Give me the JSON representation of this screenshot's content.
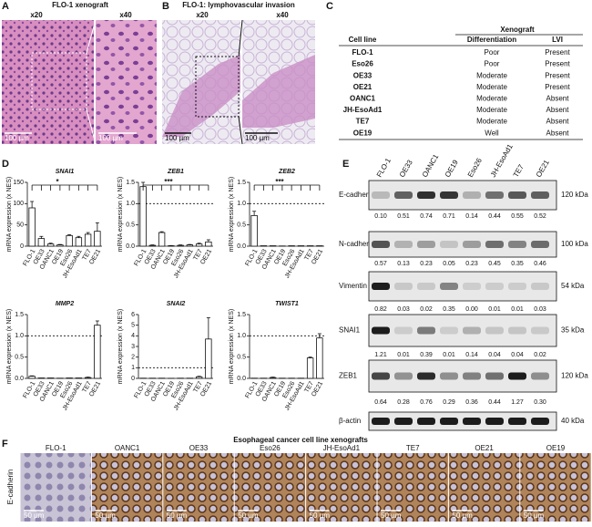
{
  "panels": {
    "a": {
      "label": "A",
      "title": "FLO-1 xenograft",
      "magnifications": [
        "x20",
        "x40"
      ],
      "scale_bars": [
        "100 µm",
        "100 µm"
      ]
    },
    "b": {
      "label": "B",
      "title": "FLO-1: lymphovascular invasion",
      "magnifications": [
        "x20",
        "x40"
      ],
      "scale_bars": [
        "100 µm",
        "100 µm"
      ]
    },
    "c": {
      "label": "C",
      "table": {
        "group_header": "Xenograft",
        "columns": [
          "Cell line",
          "Differentiation",
          "LVI"
        ],
        "rows": [
          [
            "FLO-1",
            "Poor",
            "Present"
          ],
          [
            "Eso26",
            "Poor",
            "Present"
          ],
          [
            "OE33",
            "Moderate",
            "Present"
          ],
          [
            "OE21",
            "Moderate",
            "Present"
          ],
          [
            "OANC1",
            "Moderate",
            "Absent"
          ],
          [
            "JH-EsoAd1",
            "Moderate",
            "Absent"
          ],
          [
            "TE7",
            "Moderate",
            "Absent"
          ],
          [
            "OE19",
            "Well",
            "Absent"
          ]
        ]
      }
    },
    "d": {
      "label": "D"
    },
    "e": {
      "label": "E",
      "lanes": [
        "FLO-1",
        "OE33",
        "OANC1",
        "OE19",
        "Eso26",
        "JH-EsoAd1",
        "TE7",
        "OE21"
      ],
      "rows": [
        {
          "protein": "E-cadherin",
          "size": "120 kDa",
          "values": [
            "0.10",
            "0.51",
            "0.74",
            "0.71",
            "0.14",
            "0.44",
            "0.55",
            "0.52"
          ]
        },
        {
          "protein": "N-cadherin",
          "size": "100 kDa",
          "values": [
            "0.57",
            "0.13",
            "0.23",
            "0.05",
            "0.23",
            "0.45",
            "0.35",
            "0.46"
          ]
        },
        {
          "protein": "Vimentin",
          "size": "54 kDa",
          "values": [
            "0.82",
            "0.03",
            "0.02",
            "0.35",
            "0.00",
            "0.01",
            "0.01",
            "0.03"
          ]
        },
        {
          "protein": "SNAI1",
          "size": "35 kDa",
          "values": [
            "1.21",
            "0.01",
            "0.39",
            "0.01",
            "0.14",
            "0.04",
            "0.04",
            "0.02"
          ]
        },
        {
          "protein": "ZEB1",
          "size": "120 kDa",
          "values": [
            "0.64",
            "0.28",
            "0.76",
            "0.29",
            "0.36",
            "0.44",
            "1.27",
            "0.30"
          ]
        },
        {
          "protein": "β-actin",
          "size": "40 kDa"
        }
      ]
    },
    "f": {
      "label": "F",
      "title": "Esophageal cancer cell line xenografts",
      "stain": "E-cadherin",
      "cell_lines": [
        "FLO-1",
        "OANC1",
        "OE33",
        "Eso26",
        "JH-EsoAd1",
        "TE7",
        "OE21",
        "OE19"
      ],
      "scale_bars": [
        "50 µm",
        "50 µm",
        "50 µm",
        "50 µm",
        "50 µm",
        "50 µm",
        "50 µm",
        "50 µm"
      ]
    }
  },
  "chart_data": [
    {
      "type": "bar",
      "title": "SNAI1",
      "y_label": "mRNA expression (x NES)",
      "categories": [
        "FLO-1",
        "OE33",
        "OANC1",
        "OE19",
        "Eso26",
        "JH-EsoAd1",
        "TE7",
        "OE21"
      ],
      "values": [
        90,
        18,
        5,
        3,
        25,
        20,
        28,
        35
      ],
      "errors": [
        15,
        5,
        2,
        1,
        2,
        3,
        4,
        20
      ],
      "ylim": [
        0,
        150
      ],
      "yticks": [
        0,
        50,
        100,
        150
      ],
      "significance": "*"
    },
    {
      "type": "bar",
      "title": "ZEB1",
      "y_label": "mRNA expression (x NES)",
      "categories": [
        "FLO-1",
        "OE33",
        "OANC1",
        "OE19",
        "Eso26",
        "JH-EsoAd1",
        "TE7",
        "OE21"
      ],
      "values": [
        1.4,
        0.02,
        0.32,
        0.01,
        0.02,
        0.03,
        0.05,
        0.1
      ],
      "errors": [
        0.1,
        0.01,
        0.02,
        0.005,
        0.01,
        0.01,
        0.02,
        0.05
      ],
      "ylim": [
        0,
        1.5
      ],
      "yticks": [
        {
          "value": 0,
          "label": "0.0"
        },
        {
          "value": 0.5,
          "label": "0.5"
        },
        {
          "value": 1,
          "label": "1.0"
        },
        {
          "value": 1.5,
          "label": "1.5"
        }
      ],
      "reference_line": 1,
      "significance": "***"
    },
    {
      "type": "bar",
      "title": "ZEB2",
      "y_label": "mRNA expression (x NES)",
      "categories": [
        "FLO-1",
        "OE33",
        "OANC1",
        "OE19",
        "Eso26",
        "JH-EsoAd1",
        "TE7",
        "OE21"
      ],
      "values": [
        0.72,
        0.01,
        0.01,
        0.005,
        0.01,
        0.01,
        0.01,
        0.01
      ],
      "errors": [
        0.1,
        null,
        null,
        null,
        null,
        null,
        null,
        null
      ],
      "ylim": [
        0,
        1.5
      ],
      "yticks": [
        {
          "value": 0,
          "label": "0.0"
        },
        {
          "value": 0.5,
          "label": "0.5"
        },
        {
          "value": 1,
          "label": "1.0"
        },
        {
          "value": 1.5,
          "label": "1.5"
        }
      ],
      "reference_line": 1,
      "significance": "***"
    },
    {
      "type": "bar",
      "title": "MMP2",
      "y_label": "mRNA expression (x NES)",
      "categories": [
        "FLO-1",
        "OE33",
        "OANC1",
        "OE19",
        "Eso26",
        "JH-EsoAd1",
        "TE7",
        "OE21"
      ],
      "values": [
        0.05,
        0.01,
        0.01,
        0.005,
        0.01,
        0.01,
        0.02,
        1.25
      ],
      "errors": [
        0.01,
        null,
        null,
        null,
        null,
        null,
        0.01,
        0.1
      ],
      "ylim": [
        0,
        1.5
      ],
      "yticks": [
        {
          "value": 0,
          "label": "0.0"
        },
        {
          "value": 0.5,
          "label": "0.5"
        },
        {
          "value": 1,
          "label": "1.0"
        },
        {
          "value": 1.5,
          "label": "1.5"
        }
      ],
      "reference_line": 1
    },
    {
      "type": "bar",
      "title": "SNAI2",
      "y_label": "mRNA expression (x NES)",
      "categories": [
        "FLO-1",
        "OE33",
        "OANC1",
        "OE19",
        "Eso26",
        "JH-EsoAd1",
        "TE7",
        "OE21"
      ],
      "values": [
        0.02,
        0.02,
        0.02,
        0.01,
        0.02,
        0.02,
        0.15,
        3.7
      ],
      "errors": [
        null,
        null,
        null,
        null,
        null,
        null,
        0.05,
        2
      ],
      "ylim": [
        0,
        6
      ],
      "yticks": [
        0,
        1,
        2,
        3,
        4,
        5,
        6
      ],
      "reference_line": 1
    },
    {
      "type": "bar",
      "title": "TWIST1",
      "y_label": "mRNA expression (x NES)",
      "categories": [
        "FLO-1",
        "OE33",
        "OANC1",
        "OE19",
        "Eso26",
        "JH-EsoAd1",
        "TE7",
        "OE21"
      ],
      "values": [
        0.005,
        0.005,
        0.02,
        0.005,
        0.005,
        0.005,
        0.48,
        0.95
      ],
      "errors": [
        null,
        null,
        0.01,
        null,
        null,
        null,
        0.02,
        0.1
      ],
      "ylim": [
        0,
        1.5
      ],
      "yticks": [
        {
          "value": 0,
          "label": "0.0"
        },
        {
          "value": 0.5,
          "label": "0.5"
        },
        {
          "value": 1,
          "label": "1.0"
        },
        {
          "value": 1.5,
          "label": "1.5"
        }
      ],
      "reference_line": 1
    }
  ]
}
